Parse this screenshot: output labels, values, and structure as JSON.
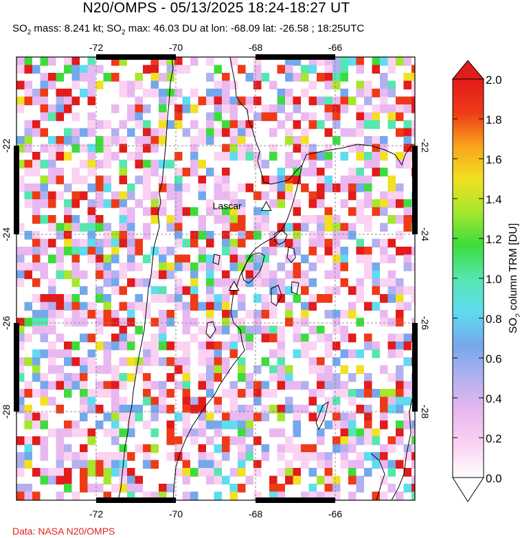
{
  "header": {
    "title": "N20/OMPS - 05/13/2025 18:24-18:27 UT",
    "subtitle_parts": [
      "SO",
      "2",
      " mass: 8.241 kt; SO",
      "2",
      " max: 46.03 DU at lon: -68.09 lat: -26.58 ; 18:25UTC"
    ]
  },
  "credit": "Data: NASA N20/OMPS",
  "map": {
    "lon_range": [
      -74,
      -64
    ],
    "lat_range": [
      -30,
      -20
    ],
    "lon_ticks": [
      -72,
      -70,
      -68,
      -66
    ],
    "lat_ticks": [
      -22,
      -24,
      -26,
      -28
    ],
    "lon_tick_labels": [
      "-72",
      "-70",
      "-68",
      "-66"
    ],
    "lat_tick_labels": [
      "-22",
      "-24",
      "-26",
      "-28"
    ],
    "gridlines": true,
    "volcanoes": [
      {
        "name": "Lascar",
        "lon": -67.73,
        "lat": -23.37,
        "label": "Lascar"
      },
      {
        "name": "",
        "lon": -68.54,
        "lat": -25.17,
        "label": ""
      }
    ]
  },
  "colorbar": {
    "label_parts": [
      "SO",
      "2",
      " column TRM [DU]"
    ],
    "min": 0.0,
    "max": 2.0,
    "ticks": [
      "0.0",
      "0.2",
      "0.4",
      "0.6",
      "0.8",
      "1.0",
      "1.2",
      "1.4",
      "1.6",
      "1.8",
      "2.0"
    ],
    "colors": [
      "#ffffff",
      "#fbd2f2",
      "#e9b8f0",
      "#b3b0f0",
      "#74a8ec",
      "#5edcf0",
      "#56e6b0",
      "#3ddc3c",
      "#a6e62e",
      "#f2e022",
      "#f8a21a",
      "#ee3a16",
      "#e21b1b"
    ]
  }
}
